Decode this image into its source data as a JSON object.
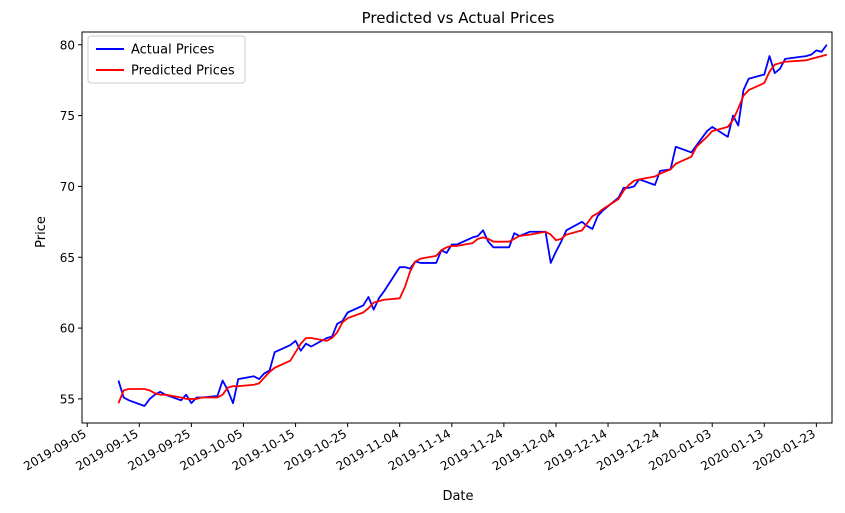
{
  "chart_data": {
    "type": "line",
    "title": "Predicted vs Actual Prices",
    "xlabel": "Date",
    "ylabel": "Price",
    "xlim": [
      "2019-09-04",
      "2020-01-26"
    ],
    "ylim": [
      53.3,
      80.9
    ],
    "x_ticks": [
      "2019-09-05",
      "2019-09-15",
      "2019-09-25",
      "2019-10-05",
      "2019-10-15",
      "2019-10-25",
      "2019-11-04",
      "2019-11-14",
      "2019-11-24",
      "2019-12-04",
      "2019-12-14",
      "2019-12-24",
      "2020-01-03",
      "2020-01-13",
      "2020-01-23"
    ],
    "y_ticks": [
      55,
      60,
      65,
      70,
      75,
      80
    ],
    "grid": false,
    "legend": {
      "position": "top-left",
      "entries": [
        "Actual Prices",
        "Predicted Prices"
      ]
    },
    "series": [
      {
        "name": "Actual Prices",
        "color": "#0000ff",
        "points": [
          [
            "2019-09-11",
            56.3
          ],
          [
            "2019-09-12",
            55.1
          ],
          [
            "2019-09-13",
            54.9
          ],
          [
            "2019-09-16",
            54.5
          ],
          [
            "2019-09-17",
            55.0
          ],
          [
            "2019-09-18",
            55.3
          ],
          [
            "2019-09-19",
            55.5
          ],
          [
            "2019-09-20",
            55.3
          ],
          [
            "2019-09-23",
            54.9
          ],
          [
            "2019-09-24",
            55.3
          ],
          [
            "2019-09-25",
            54.7
          ],
          [
            "2019-09-26",
            55.1
          ],
          [
            "2019-09-27",
            55.1
          ],
          [
            "2019-09-30",
            55.2
          ],
          [
            "2019-10-01",
            56.3
          ],
          [
            "2019-10-02",
            55.6
          ],
          [
            "2019-10-03",
            54.7
          ],
          [
            "2019-10-04",
            56.4
          ],
          [
            "2019-10-07",
            56.6
          ],
          [
            "2019-10-08",
            56.4
          ],
          [
            "2019-10-09",
            56.8
          ],
          [
            "2019-10-10",
            57.0
          ],
          [
            "2019-10-11",
            58.3
          ],
          [
            "2019-10-14",
            58.8
          ],
          [
            "2019-10-15",
            59.1
          ],
          [
            "2019-10-16",
            58.4
          ],
          [
            "2019-10-17",
            58.9
          ],
          [
            "2019-10-18",
            58.7
          ],
          [
            "2019-10-21",
            59.3
          ],
          [
            "2019-10-22",
            59.4
          ],
          [
            "2019-10-23",
            60.3
          ],
          [
            "2019-10-24",
            60.5
          ],
          [
            "2019-10-25",
            61.1
          ],
          [
            "2019-10-28",
            61.6
          ],
          [
            "2019-10-29",
            62.2
          ],
          [
            "2019-10-30",
            61.3
          ],
          [
            "2019-10-31",
            62.1
          ],
          [
            "2019-11-01",
            62.6
          ],
          [
            "2019-11-04",
            64.3
          ],
          [
            "2019-11-05",
            64.3
          ],
          [
            "2019-11-06",
            64.2
          ],
          [
            "2019-11-07",
            64.7
          ],
          [
            "2019-11-08",
            64.6
          ],
          [
            "2019-11-11",
            64.6
          ],
          [
            "2019-11-12",
            65.5
          ],
          [
            "2019-11-13",
            65.3
          ],
          [
            "2019-11-14",
            65.9
          ],
          [
            "2019-11-15",
            65.9
          ],
          [
            "2019-11-18",
            66.4
          ],
          [
            "2019-11-19",
            66.5
          ],
          [
            "2019-11-20",
            66.9
          ],
          [
            "2019-11-21",
            66.1
          ],
          [
            "2019-11-22",
            65.7
          ],
          [
            "2019-11-25",
            65.7
          ],
          [
            "2019-11-26",
            66.7
          ],
          [
            "2019-11-27",
            66.5
          ],
          [
            "2019-11-29",
            66.8
          ],
          [
            "2019-12-02",
            66.8
          ],
          [
            "2019-12-03",
            64.6
          ],
          [
            "2019-12-04",
            65.4
          ],
          [
            "2019-12-05",
            66.1
          ],
          [
            "2019-12-06",
            66.9
          ],
          [
            "2019-12-09",
            67.5
          ],
          [
            "2019-12-10",
            67.2
          ],
          [
            "2019-12-11",
            67.0
          ],
          [
            "2019-12-12",
            67.9
          ],
          [
            "2019-12-13",
            68.3
          ],
          [
            "2019-12-16",
            69.2
          ],
          [
            "2019-12-17",
            69.9
          ],
          [
            "2019-12-18",
            69.9
          ],
          [
            "2019-12-19",
            70.0
          ],
          [
            "2019-12-20",
            70.5
          ],
          [
            "2019-12-23",
            70.1
          ],
          [
            "2019-12-24",
            71.1
          ],
          [
            "2019-12-26",
            71.2
          ],
          [
            "2019-12-27",
            72.8
          ],
          [
            "2019-12-30",
            72.4
          ],
          [
            "2019-12-31",
            72.9
          ],
          [
            "2020-01-02",
            73.9
          ],
          [
            "2020-01-03",
            74.2
          ],
          [
            "2020-01-06",
            73.5
          ],
          [
            "2020-01-07",
            75.0
          ],
          [
            "2020-01-08",
            74.3
          ],
          [
            "2020-01-09",
            76.8
          ],
          [
            "2020-01-10",
            77.6
          ],
          [
            "2020-01-13",
            77.9
          ],
          [
            "2020-01-14",
            79.2
          ],
          [
            "2020-01-15",
            78.0
          ],
          [
            "2020-01-16",
            78.3
          ],
          [
            "2020-01-17",
            79.0
          ],
          [
            "2020-01-21",
            79.2
          ],
          [
            "2020-01-22",
            79.3
          ],
          [
            "2020-01-23",
            79.6
          ],
          [
            "2020-01-24",
            79.5
          ],
          [
            "2020-01-25",
            80.0
          ]
        ]
      },
      {
        "name": "Predicted Prices",
        "color": "#ff0000",
        "points": [
          [
            "2019-09-11",
            54.7
          ],
          [
            "2019-09-12",
            55.6
          ],
          [
            "2019-09-13",
            55.7
          ],
          [
            "2019-09-16",
            55.7
          ],
          [
            "2019-09-17",
            55.6
          ],
          [
            "2019-09-18",
            55.4
          ],
          [
            "2019-09-19",
            55.3
          ],
          [
            "2019-09-20",
            55.3
          ],
          [
            "2019-09-23",
            55.1
          ],
          [
            "2019-09-24",
            55.0
          ],
          [
            "2019-09-25",
            55.0
          ],
          [
            "2019-09-26",
            55.0
          ],
          [
            "2019-09-27",
            55.1
          ],
          [
            "2019-09-30",
            55.1
          ],
          [
            "2019-10-01",
            55.3
          ],
          [
            "2019-10-02",
            55.8
          ],
          [
            "2019-10-03",
            55.9
          ],
          [
            "2019-10-04",
            55.9
          ],
          [
            "2019-10-07",
            56.0
          ],
          [
            "2019-10-08",
            56.1
          ],
          [
            "2019-10-09",
            56.5
          ],
          [
            "2019-10-10",
            56.9
          ],
          [
            "2019-10-11",
            57.2
          ],
          [
            "2019-10-14",
            57.7
          ],
          [
            "2019-10-15",
            58.3
          ],
          [
            "2019-10-16",
            58.9
          ],
          [
            "2019-10-17",
            59.3
          ],
          [
            "2019-10-18",
            59.3
          ],
          [
            "2019-10-21",
            59.1
          ],
          [
            "2019-10-22",
            59.3
          ],
          [
            "2019-10-23",
            59.7
          ],
          [
            "2019-10-24",
            60.4
          ],
          [
            "2019-10-25",
            60.7
          ],
          [
            "2019-10-28",
            61.1
          ],
          [
            "2019-10-29",
            61.4
          ],
          [
            "2019-10-30",
            61.8
          ],
          [
            "2019-10-31",
            61.9
          ],
          [
            "2019-11-01",
            62.0
          ],
          [
            "2019-11-04",
            62.1
          ],
          [
            "2019-11-05",
            62.9
          ],
          [
            "2019-11-06",
            64.0
          ],
          [
            "2019-11-07",
            64.7
          ],
          [
            "2019-11-08",
            64.9
          ],
          [
            "2019-11-11",
            65.1
          ],
          [
            "2019-11-12",
            65.5
          ],
          [
            "2019-11-13",
            65.7
          ],
          [
            "2019-11-14",
            65.8
          ],
          [
            "2019-11-15",
            65.8
          ],
          [
            "2019-11-18",
            66.0
          ],
          [
            "2019-11-19",
            66.3
          ],
          [
            "2019-11-20",
            66.4
          ],
          [
            "2019-11-21",
            66.3
          ],
          [
            "2019-11-22",
            66.1
          ],
          [
            "2019-11-25",
            66.1
          ],
          [
            "2019-11-26",
            66.3
          ],
          [
            "2019-11-27",
            66.5
          ],
          [
            "2019-11-29",
            66.6
          ],
          [
            "2019-12-02",
            66.8
          ],
          [
            "2019-12-03",
            66.6
          ],
          [
            "2019-12-04",
            66.2
          ],
          [
            "2019-12-05",
            66.3
          ],
          [
            "2019-12-06",
            66.6
          ],
          [
            "2019-12-09",
            66.9
          ],
          [
            "2019-12-10",
            67.4
          ],
          [
            "2019-12-11",
            67.9
          ],
          [
            "2019-12-12",
            68.1
          ],
          [
            "2019-12-13",
            68.4
          ],
          [
            "2019-12-16",
            69.1
          ],
          [
            "2019-12-17",
            69.7
          ],
          [
            "2019-12-18",
            70.1
          ],
          [
            "2019-12-19",
            70.4
          ],
          [
            "2019-12-20",
            70.5
          ],
          [
            "2019-12-23",
            70.7
          ],
          [
            "2019-12-24",
            70.9
          ],
          [
            "2019-12-26",
            71.2
          ],
          [
            "2019-12-27",
            71.6
          ],
          [
            "2019-12-30",
            72.1
          ],
          [
            "2019-12-31",
            72.8
          ],
          [
            "2020-01-02",
            73.5
          ],
          [
            "2020-01-03",
            73.9
          ],
          [
            "2020-01-06",
            74.2
          ],
          [
            "2020-01-07",
            74.7
          ],
          [
            "2020-01-08",
            75.5
          ],
          [
            "2020-01-09",
            76.4
          ],
          [
            "2020-01-10",
            76.8
          ],
          [
            "2020-01-13",
            77.3
          ],
          [
            "2020-01-14",
            78.1
          ],
          [
            "2020-01-15",
            78.6
          ],
          [
            "2020-01-16",
            78.7
          ],
          [
            "2020-01-17",
            78.8
          ],
          [
            "2020-01-21",
            78.9
          ],
          [
            "2020-01-22",
            79.0
          ],
          [
            "2020-01-23",
            79.1
          ],
          [
            "2020-01-24",
            79.2
          ],
          [
            "2020-01-25",
            79.3
          ]
        ]
      }
    ]
  }
}
